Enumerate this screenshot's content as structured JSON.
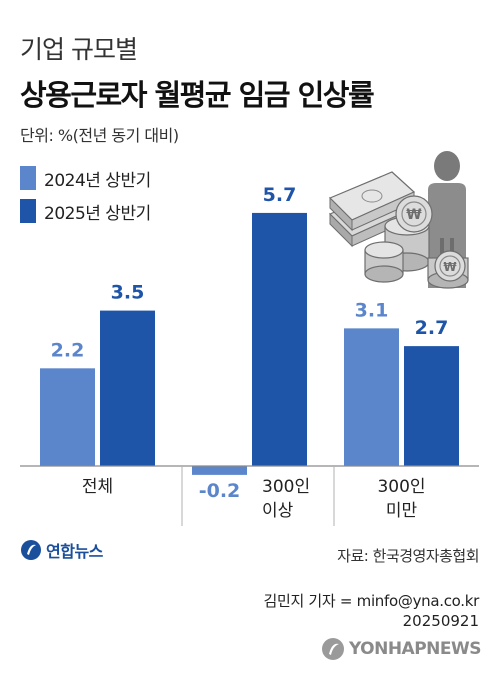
{
  "header": {
    "subtitle": "기업 규모별",
    "title": "상용근로자 월평균 임금 인상률",
    "unit": "단위: %(전년 동기 대비)"
  },
  "chart_data": {
    "type": "bar",
    "categories": [
      [
        "전체"
      ],
      [
        "300인",
        "이상"
      ],
      [
        "300인",
        "미만"
      ]
    ],
    "series": [
      {
        "name": "2024년 상반기",
        "color": "#5b86cb",
        "values": [
          2.2,
          -0.2,
          3.1
        ]
      },
      {
        "name": "2025년 상반기",
        "color": "#1f55a8",
        "values": [
          3.5,
          5.7,
          2.7
        ]
      }
    ],
    "value_labels": [
      [
        "2.2",
        "-0.2",
        "3.1"
      ],
      [
        "3.5",
        "5.7",
        "2.7"
      ]
    ],
    "ylim": [
      -0.5,
      6.3
    ],
    "grid": false,
    "legend": "top-left"
  },
  "footer": {
    "logo_text": "연합뉴스",
    "source": "자료: 한국경영자총협회",
    "reporter": "김민지 기자 = minfo@yna.co.kr",
    "date": "20250921",
    "agency": "YONHAPNEWS"
  },
  "illustration": {
    "icon": "money-stack-coins-person-icon"
  }
}
